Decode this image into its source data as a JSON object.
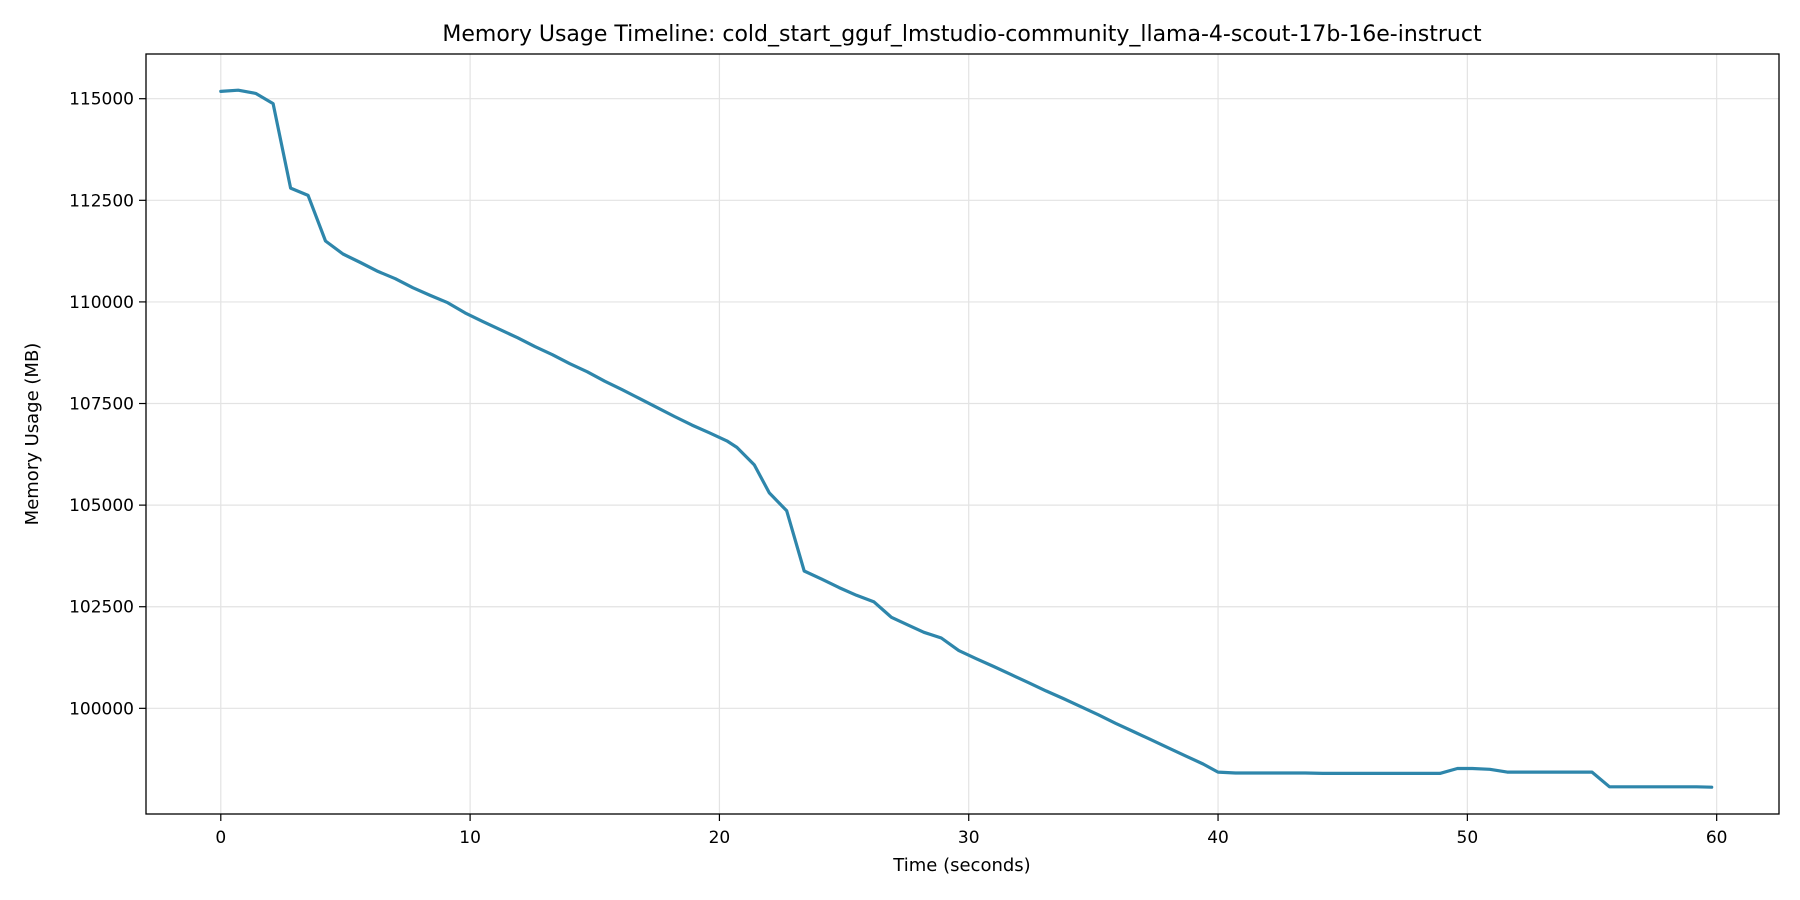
{
  "chart_data": {
    "type": "line",
    "title": "Memory Usage Timeline: cold_start_gguf_lmstudio-community_llama-4-scout-17b-16e-instruct",
    "xlabel": "Time (seconds)",
    "ylabel": "Memory Usage (MB)",
    "xlim": [
      -3,
      62.5
    ],
    "ylim": [
      97400,
      116100
    ],
    "xticks": [
      0,
      10,
      20,
      30,
      40,
      50,
      60
    ],
    "yticks": [
      100000,
      102500,
      105000,
      107500,
      110000,
      112500,
      115000
    ],
    "grid": true,
    "line_color": "#2e86ab",
    "series": [
      {
        "x": [
          0,
          0.7,
          1.4,
          2.1,
          2.8,
          3.5,
          4.2,
          4.9,
          5.6,
          6.3,
          7.0,
          7.7,
          8.4,
          9.1,
          9.8,
          10.5,
          11.2,
          11.9,
          12.6,
          13.3,
          14.0,
          14.7,
          15.4,
          16.1,
          16.8,
          17.5,
          18.2,
          18.9,
          19.6,
          20.3,
          20.7,
          21.4,
          22.0,
          22.7,
          23.4,
          24.1,
          24.8,
          25.5,
          26.2,
          26.9,
          27.6,
          28.2,
          28.9,
          29.6,
          30.3,
          31.0,
          31.7,
          32.4,
          33.1,
          33.8,
          34.5,
          35.2,
          35.9,
          36.6,
          37.3,
          38.0,
          38.7,
          39.4,
          40.0,
          40.7,
          41.4,
          42.1,
          42.8,
          43.5,
          44.2,
          44.9,
          45.6,
          46.3,
          47.0,
          47.7,
          48.2,
          48.9,
          49.6,
          50.2,
          50.9,
          51.6,
          52.3,
          53.0,
          53.7,
          54.4,
          55.0,
          55.7,
          56.4,
          57.1,
          57.8,
          58.5,
          59.2,
          59.8
        ],
        "y": [
          115180,
          115210,
          115130,
          114880,
          112800,
          112620,
          111500,
          111180,
          110970,
          110750,
          110570,
          110350,
          110160,
          109980,
          109730,
          109520,
          109320,
          109120,
          108900,
          108700,
          108480,
          108280,
          108050,
          107840,
          107620,
          107400,
          107180,
          106970,
          106780,
          106580,
          106420,
          105990,
          105300,
          104860,
          103380,
          103180,
          102970,
          102780,
          102620,
          102240,
          102040,
          101870,
          101730,
          101420,
          101220,
          101030,
          100830,
          100630,
          100430,
          100240,
          100040,
          99840,
          99630,
          99430,
          99230,
          99030,
          98830,
          98630,
          98430,
          98410,
          98410,
          98410,
          98410,
          98410,
          98400,
          98400,
          98400,
          98400,
          98400,
          98400,
          98400,
          98400,
          98520,
          98520,
          98500,
          98430,
          98430,
          98430,
          98430,
          98430,
          98430,
          98070,
          98070,
          98070,
          98070,
          98070,
          98070,
          98060
        ]
      }
    ]
  }
}
